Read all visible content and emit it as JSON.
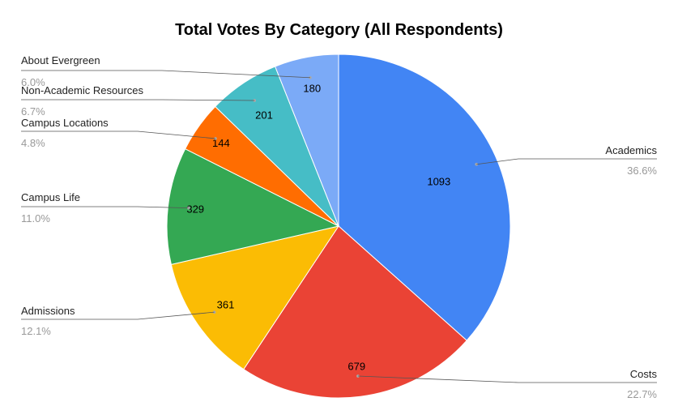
{
  "chart_data": {
    "type": "pie",
    "title": "Total Votes By Category (All Respondents)",
    "slices": [
      {
        "label": "Academics",
        "value": 1093,
        "percent": "36.6%",
        "color": "#4285f4"
      },
      {
        "label": "Costs",
        "value": 679,
        "percent": "22.7%",
        "color": "#ea4335"
      },
      {
        "label": "Admissions",
        "value": 361,
        "percent": "12.1%",
        "color": "#fbbc04"
      },
      {
        "label": "Campus Life",
        "value": 329,
        "percent": "11.0%",
        "color": "#34a853"
      },
      {
        "label": "Campus Locations",
        "value": 144,
        "percent": "4.8%",
        "color": "#ff6d01"
      },
      {
        "label": "Non-Academic Resources",
        "value": 201,
        "percent": "6.7%",
        "color": "#46bdc6"
      },
      {
        "label": "About Evergreen",
        "value": 180,
        "percent": "6.0%",
        "color": "#7baaf7"
      }
    ],
    "legend": "callout-labels"
  }
}
